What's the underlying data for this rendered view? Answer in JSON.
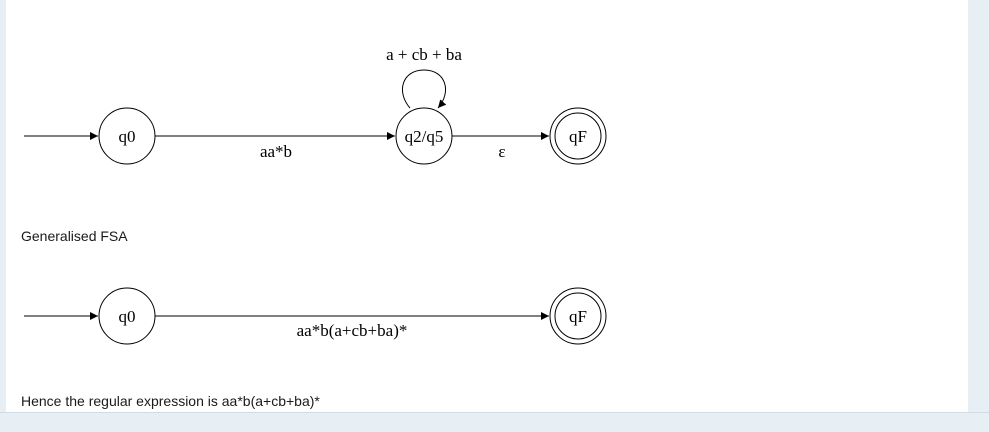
{
  "diagram1": {
    "start_state": "q0",
    "middle_state": "q2/q5",
    "final_state": "qF",
    "edge_start_to_middle": "aa*b",
    "self_loop": "a + cb + ba",
    "edge_middle_to_final": "ε"
  },
  "caption1": "Generalised FSA",
  "diagram2": {
    "start_state": "q0",
    "final_state": "qF",
    "edge_start_to_final": "aa*b(a+cb+ba)*"
  },
  "caption2": "Hence the regular expression is aa*b(a+cb+ba)*"
}
